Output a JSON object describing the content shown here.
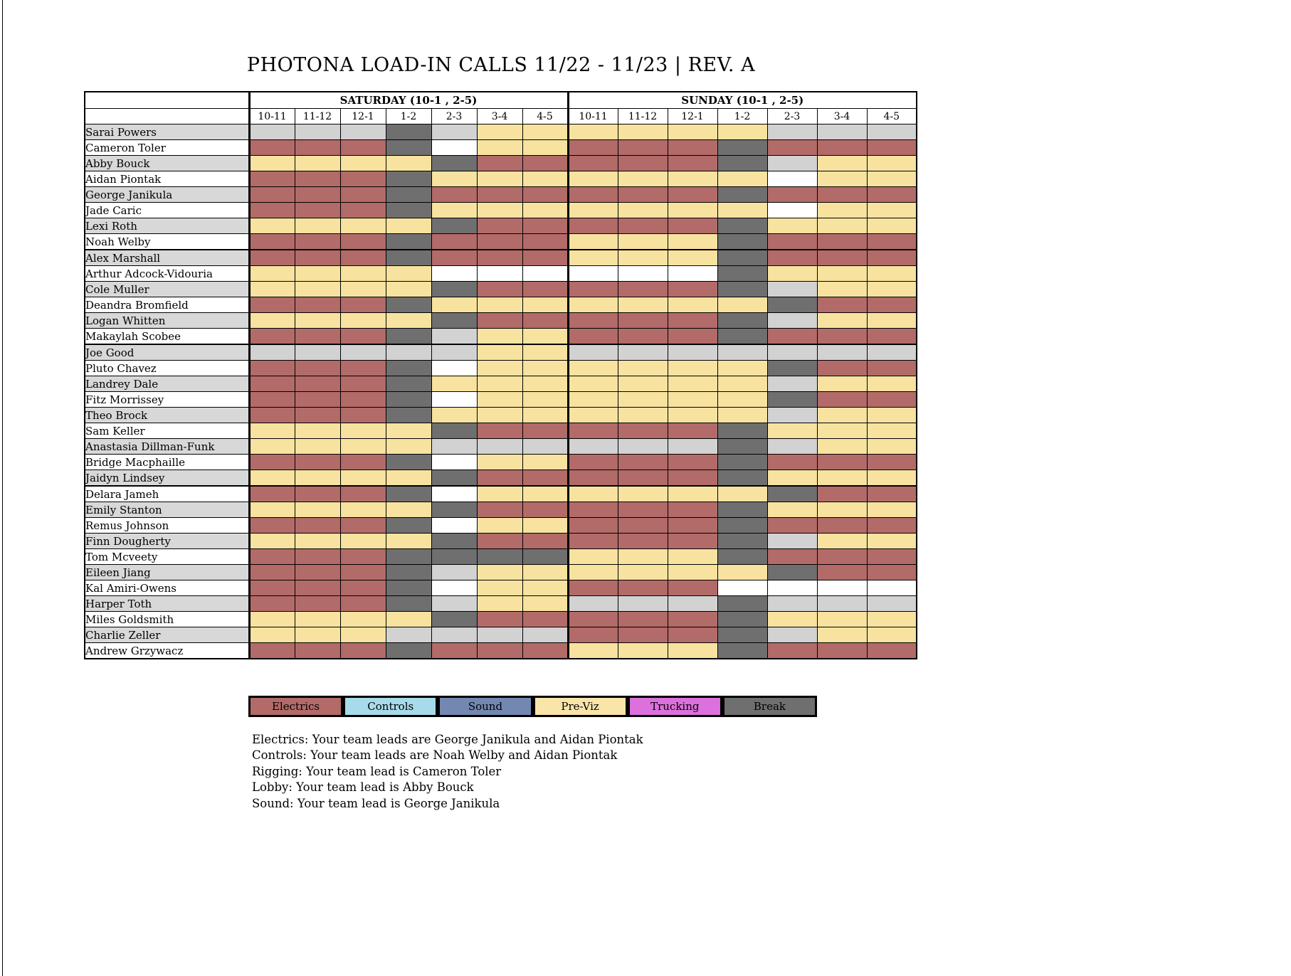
{
  "title": "PHOTONA LOAD-IN CALLS 11/22 - 11/23 | REV. A",
  "table": {
    "day_headers": [
      "SATURDAY (10-1 , 2-5)",
      "SUNDAY (10-1 , 2-5)"
    ],
    "time_slots": [
      "10-11",
      "11-12",
      "12-1",
      "1-2",
      "2-3",
      "3-4",
      "4-5"
    ],
    "group_separators_after": [
      8,
      14,
      23
    ],
    "cell_colors": {
      "E": "#B26B68",
      "P": "#F8E2A0",
      "B": "#6F6F6F",
      "G": "#D2D2D2",
      "W": "#FFFFFF"
    },
    "cell_types": {
      "E": "electrics",
      "P": "pre-viz",
      "B": "break",
      "G": "gray",
      "W": "empty"
    },
    "rows": [
      {
        "name": "Sarai Powers",
        "sat": "GGGBGPP",
        "sun": "PPPPGGG"
      },
      {
        "name": "Cameron Toler",
        "sat": "EEEBWPP",
        "sun": "EEEBEEE"
      },
      {
        "name": "Abby Bouck",
        "sat": "PPPPBEE",
        "sun": "EEEBGPP"
      },
      {
        "name": "Aidan Piontak",
        "sat": "EEEBPPP",
        "sun": "PPPPWPP"
      },
      {
        "name": "George Janikula",
        "sat": "EEEBEEE",
        "sun": "EEEBEEE"
      },
      {
        "name": "Jade Caric",
        "sat": "EEEBPPP",
        "sun": "PPPPWPP"
      },
      {
        "name": "Lexi Roth",
        "sat": "PPPPBEE",
        "sun": "EEEBPPP"
      },
      {
        "name": "Noah Welby",
        "sat": "EEEBEEE",
        "sun": "PPPBEEE"
      },
      {
        "name": "Alex Marshall",
        "sat": "EEEBEEE",
        "sun": "PPPBEEE"
      },
      {
        "name": "Arthur Adcock-Vidouria",
        "sat": "PPPPWWW",
        "sun": "WWWBPPP"
      },
      {
        "name": "Cole Muller",
        "sat": "PPPPBEE",
        "sun": "EEEBGPP"
      },
      {
        "name": "Deandra Bromfield",
        "sat": "EEEBPPP",
        "sun": "PPPPBEE"
      },
      {
        "name": "Logan Whitten",
        "sat": "PPPPBEE",
        "sun": "EEEBGPP"
      },
      {
        "name": "Makaylah Scobee",
        "sat": "EEEBGPP",
        "sun": "EEEBEEE"
      },
      {
        "name": "Joe Good",
        "sat": "GGGGGPP",
        "sun": "GGGGGGG"
      },
      {
        "name": "Pluto Chavez",
        "sat": "EEEBWPP",
        "sun": "PPPPBEE"
      },
      {
        "name": "Landrey Dale",
        "sat": "EEEBPPP",
        "sun": "PPPPGPP"
      },
      {
        "name": "Fitz Morrissey",
        "sat": "EEEBWPP",
        "sun": "PPPPBEE"
      },
      {
        "name": "Theo Brock",
        "sat": "EEEBPPP",
        "sun": "PPPPGPP"
      },
      {
        "name": "Sam Keller",
        "sat": "PPPPBEE",
        "sun": "EEEBPPP"
      },
      {
        "name": "Anastasia Dillman-Funk",
        "sat": "PPPPGGG",
        "sun": "GGGBGPP"
      },
      {
        "name": "Bridge Macphaille",
        "sat": "EEEBWPP",
        "sun": "EEEBEEE"
      },
      {
        "name": "Jaidyn Lindsey",
        "sat": "PPPPBEE",
        "sun": "EEEBPPP"
      },
      {
        "name": "Delara Jameh",
        "sat": "EEEBWPP",
        "sun": "PPPPBEE"
      },
      {
        "name": "Emily Stanton",
        "sat": "PPPPBEE",
        "sun": "EEEBPPP"
      },
      {
        "name": "Remus Johnson",
        "sat": "EEEBWPP",
        "sun": "EEEBEEE"
      },
      {
        "name": "Finn Dougherty",
        "sat": "PPPPBEE",
        "sun": "EEEBGPP"
      },
      {
        "name": "Tom Mcveety",
        "sat": "EEEBBBB",
        "sun": "PPPBEEE"
      },
      {
        "name": "Eileen Jiang",
        "sat": "EEEBGPP",
        "sun": "PPPPBEE"
      },
      {
        "name": "Kal Amiri-Owens",
        "sat": "EEEBWPP",
        "sun": "EEEWWWW"
      },
      {
        "name": "Harper Toth",
        "sat": "EEEBGPP",
        "sun": "GGGBGGG"
      },
      {
        "name": "Miles Goldsmith",
        "sat": "PPPPBEE",
        "sun": "EEEBPPP"
      },
      {
        "name": "Charlie Zeller",
        "sat": "PPPGGGG",
        "sun": "EEEBGPP"
      },
      {
        "name": "Andrew Grzywacz",
        "sat": "EEEBEEE",
        "sun": "PPPBEEE"
      }
    ]
  },
  "legend": {
    "items": [
      {
        "label": "Electrics",
        "color": "#B26B68"
      },
      {
        "label": "Controls",
        "color": "#A7DBEA"
      },
      {
        "label": "Sound",
        "color": "#7288B1"
      },
      {
        "label": "Pre-Viz",
        "color": "#FAE5A9"
      },
      {
        "label": "Trucking",
        "color": "#DC70DC"
      },
      {
        "label": "Break",
        "color": "#6F6F6F"
      }
    ]
  },
  "notes": [
    "Electrics: Your team leads are George Janikula and Aidan Piontak",
    "Controls: Your team leads are Noah Welby and Aidan Piontak",
    "Rigging: Your team lead is Cameron Toler",
    "Lobby: Your team lead is Abby Bouck",
    "Sound: Your team lead is George Janikula"
  ]
}
